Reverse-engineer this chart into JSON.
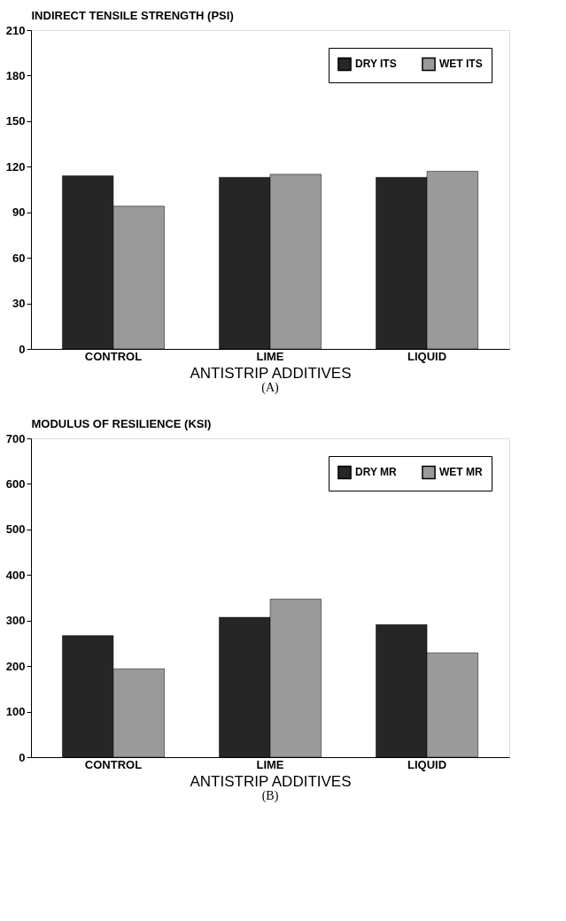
{
  "chart_data": [
    {
      "type": "bar",
      "ylabel": "INDIRECT TENSILE STRENGTH (PSI)",
      "xlabel": "ANTISTRIP ADDITIVES",
      "categories": [
        "CONTROL",
        "LIME",
        "LIQUID"
      ],
      "series": [
        {
          "name": "DRY ITS",
          "color": "#262626",
          "values": [
            114,
            113,
            113
          ]
        },
        {
          "name": "WET ITS",
          "color": "#9a9a9a",
          "values": [
            94,
            115,
            117
          ]
        }
      ],
      "ylim": [
        0,
        210
      ],
      "yticks": [
        0,
        30,
        60,
        90,
        120,
        150,
        180,
        210
      ],
      "grid": false,
      "legend": "top right",
      "annotations": [
        "(A)"
      ]
    },
    {
      "type": "bar",
      "ylabel": "MODULUS OF RESILIENCE (KSI)",
      "xlabel": "ANTISTRIP ADDITIVES",
      "categories": [
        "CONTROL",
        "LIME",
        "LIQUID"
      ],
      "series": [
        {
          "name": "DRY MR",
          "color": "#262626",
          "values": [
            267,
            307,
            291
          ]
        },
        {
          "name": "WET MR",
          "color": "#9a9a9a",
          "values": [
            194,
            347,
            229
          ]
        }
      ],
      "ylim": [
        0,
        700
      ],
      "yticks": [
        0,
        100,
        200,
        300,
        400,
        500,
        600,
        700
      ],
      "grid": false,
      "legend": "top right",
      "annotations": [
        "(B)"
      ]
    }
  ]
}
